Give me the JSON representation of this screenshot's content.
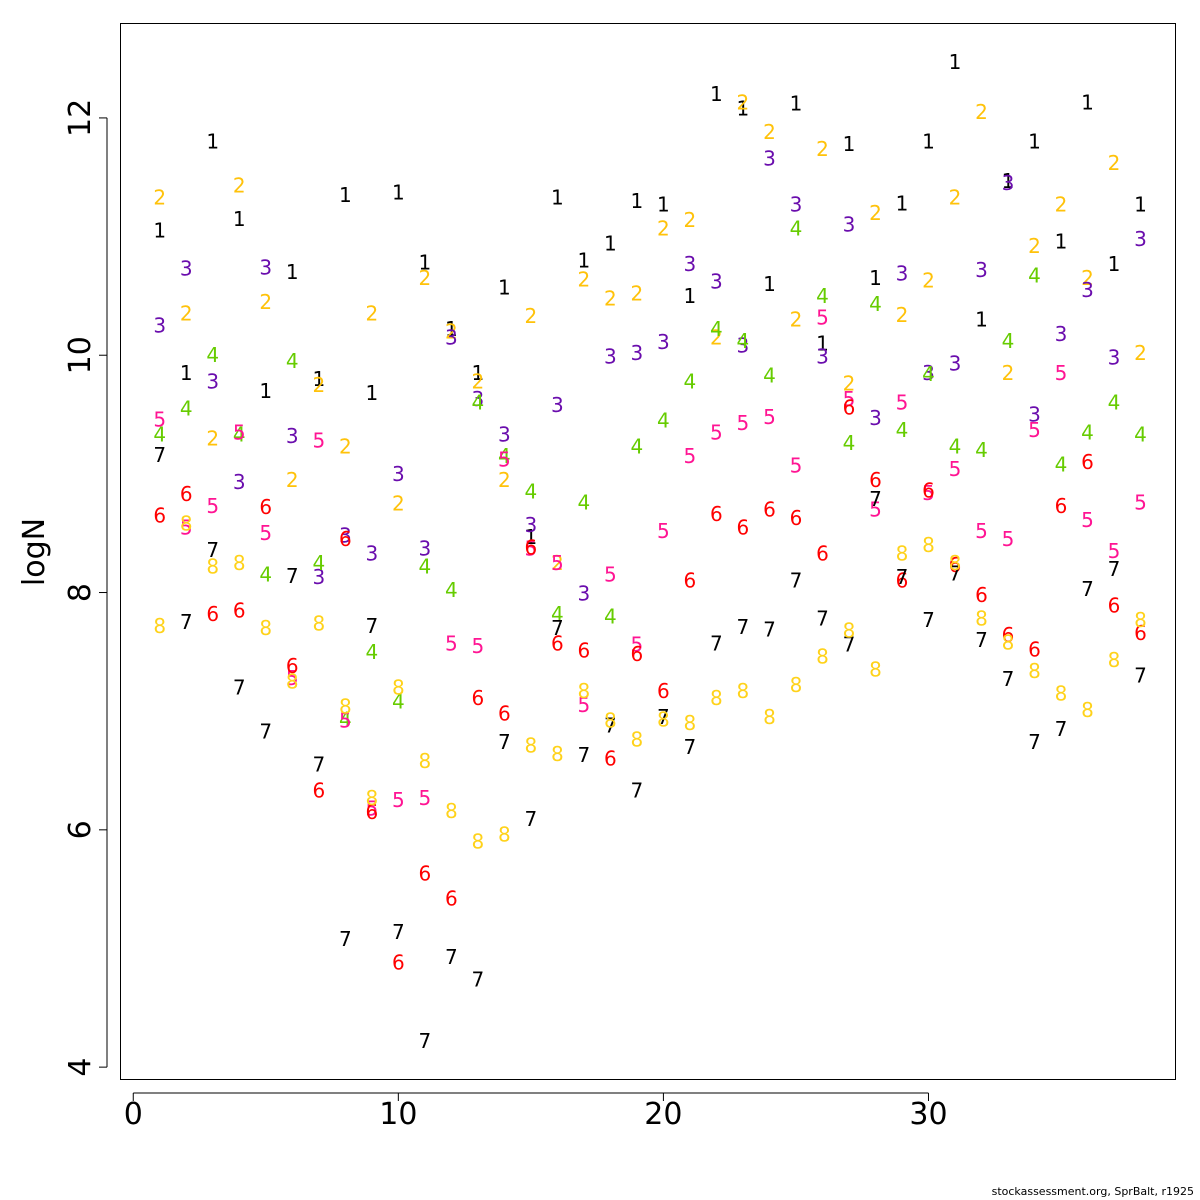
{
  "chart_data": {
    "type": "scatter",
    "xlabel": "",
    "ylabel": "logN",
    "xlim": [
      -0.5,
      39.3
    ],
    "ylim": [
      3.9,
      12.8
    ],
    "xticks": [
      0,
      10,
      20,
      30
    ],
    "yticks": [
      4,
      6,
      8,
      10,
      12
    ],
    "grid": false,
    "marker": "age label",
    "colors": {
      "1": "#000000",
      "2": "#FFC20A",
      "3": "#6A0DAD",
      "4": "#66CC00",
      "5": "#FF1493",
      "6": "#FF0000",
      "7": "#000000",
      "8": "#FFD21A"
    },
    "series": [
      {
        "label": "1",
        "points": [
          [
            1,
            11.05
          ],
          [
            2,
            9.85
          ],
          [
            3,
            11.8
          ],
          [
            4,
            11.15
          ],
          [
            5,
            9.7
          ],
          [
            6,
            10.7
          ],
          [
            7,
            9.8
          ],
          [
            8,
            11.35
          ],
          [
            9,
            9.68
          ],
          [
            10,
            11.37
          ],
          [
            11,
            10.78
          ],
          [
            12,
            10.22
          ],
          [
            13,
            9.85
          ],
          [
            14,
            10.57
          ],
          [
            15,
            8.47
          ],
          [
            16,
            11.33
          ],
          [
            17,
            10.8
          ],
          [
            18,
            10.94
          ],
          [
            19,
            11.3
          ],
          [
            20,
            11.27
          ],
          [
            21,
            10.5
          ],
          [
            22,
            12.2
          ],
          [
            23,
            12.08
          ],
          [
            24,
            10.6
          ],
          [
            25,
            12.12
          ],
          [
            26,
            10.1
          ],
          [
            27,
            11.78
          ],
          [
            28,
            10.65
          ],
          [
            29,
            11.28
          ],
          [
            30,
            11.8
          ],
          [
            31,
            12.47
          ],
          [
            32,
            10.3
          ],
          [
            33,
            11.47
          ],
          [
            34,
            11.8
          ],
          [
            35,
            10.96
          ],
          [
            36,
            12.13
          ],
          [
            37,
            10.77
          ],
          [
            38,
            11.27
          ]
        ]
      },
      {
        "label": "2",
        "points": [
          [
            1,
            11.33
          ],
          [
            2,
            10.35
          ],
          [
            3,
            9.3
          ],
          [
            4,
            11.43
          ],
          [
            5,
            10.45
          ],
          [
            6,
            8.95
          ],
          [
            7,
            9.75
          ],
          [
            8,
            9.23
          ],
          [
            9,
            10.35
          ],
          [
            10,
            8.75
          ],
          [
            11,
            10.65
          ],
          [
            12,
            10.2
          ],
          [
            13,
            9.78
          ],
          [
            14,
            8.95
          ],
          [
            15,
            10.33
          ],
          [
            16,
            8.25
          ],
          [
            17,
            10.64
          ],
          [
            18,
            10.48
          ],
          [
            19,
            10.52
          ],
          [
            20,
            11.07
          ],
          [
            21,
            11.14
          ],
          [
            22,
            10.15
          ],
          [
            23,
            12.13
          ],
          [
            24,
            11.88
          ],
          [
            25,
            10.3
          ],
          [
            26,
            11.74
          ],
          [
            27,
            9.76
          ],
          [
            28,
            11.2
          ],
          [
            29,
            10.34
          ],
          [
            30,
            10.63
          ],
          [
            31,
            11.33
          ],
          [
            32,
            12.05
          ],
          [
            33,
            9.85
          ],
          [
            34,
            10.92
          ],
          [
            35,
            11.27
          ],
          [
            36,
            10.65
          ],
          [
            37,
            11.62
          ],
          [
            38,
            10.02
          ]
        ]
      },
      {
        "label": "3",
        "points": [
          [
            1,
            10.25
          ],
          [
            2,
            10.73
          ],
          [
            3,
            9.78
          ],
          [
            4,
            8.93
          ],
          [
            5,
            10.74
          ],
          [
            6,
            9.32
          ],
          [
            7,
            8.13
          ],
          [
            8,
            8.48
          ],
          [
            9,
            8.33
          ],
          [
            10,
            9.0
          ],
          [
            11,
            8.37
          ],
          [
            12,
            10.15
          ],
          [
            13,
            9.63
          ],
          [
            14,
            9.33
          ],
          [
            15,
            8.57
          ],
          [
            16,
            9.58
          ],
          [
            17,
            7.99
          ],
          [
            18,
            9.99
          ],
          [
            19,
            10.02
          ],
          [
            20,
            10.11
          ],
          [
            21,
            10.77
          ],
          [
            22,
            10.62
          ],
          [
            23,
            10.08
          ],
          [
            24,
            11.66
          ],
          [
            25,
            11.27
          ],
          [
            26,
            9.99
          ],
          [
            27,
            11.1
          ],
          [
            28,
            9.47
          ],
          [
            29,
            10.69
          ],
          [
            30,
            9.85
          ],
          [
            31,
            9.93
          ],
          [
            32,
            10.72
          ],
          [
            33,
            11.45
          ],
          [
            34,
            9.5
          ],
          [
            35,
            10.18
          ],
          [
            36,
            10.55
          ],
          [
            37,
            9.98
          ],
          [
            38,
            10.98
          ]
        ]
      },
      {
        "label": "4",
        "points": [
          [
            1,
            9.33
          ],
          [
            2,
            9.55
          ],
          [
            3,
            10.0
          ],
          [
            4,
            9.33
          ],
          [
            5,
            8.15
          ],
          [
            6,
            9.95
          ],
          [
            7,
            8.25
          ],
          [
            8,
            6.93
          ],
          [
            9,
            7.5
          ],
          [
            10,
            7.08
          ],
          [
            11,
            8.22
          ],
          [
            12,
            8.02
          ],
          [
            13,
            9.6
          ],
          [
            14,
            9.15
          ],
          [
            15,
            8.85
          ],
          [
            16,
            7.82
          ],
          [
            17,
            8.76
          ],
          [
            18,
            7.8
          ],
          [
            19,
            9.23
          ],
          [
            20,
            9.45
          ],
          [
            21,
            9.78
          ],
          [
            22,
            10.22
          ],
          [
            23,
            10.12
          ],
          [
            24,
            9.83
          ],
          [
            25,
            11.07
          ],
          [
            26,
            10.5
          ],
          [
            27,
            9.26
          ],
          [
            28,
            10.43
          ],
          [
            29,
            9.37
          ],
          [
            30,
            9.84
          ],
          [
            31,
            9.23
          ],
          [
            32,
            9.2
          ],
          [
            33,
            10.12
          ],
          [
            34,
            10.67
          ],
          [
            35,
            9.08
          ],
          [
            36,
            9.35
          ],
          [
            37,
            9.6
          ],
          [
            38,
            9.33
          ]
        ]
      },
      {
        "label": "5",
        "points": [
          [
            1,
            9.46
          ],
          [
            2,
            8.55
          ],
          [
            3,
            8.73
          ],
          [
            4,
            9.35
          ],
          [
            5,
            8.5
          ],
          [
            6,
            7.28
          ],
          [
            7,
            9.28
          ],
          [
            8,
            6.92
          ],
          [
            9,
            6.18
          ],
          [
            10,
            6.25
          ],
          [
            11,
            6.27
          ],
          [
            12,
            7.57
          ],
          [
            13,
            7.55
          ],
          [
            14,
            9.12
          ],
          [
            15,
            8.37
          ],
          [
            16,
            8.25
          ],
          [
            17,
            7.05
          ],
          [
            18,
            8.15
          ],
          [
            19,
            7.56
          ],
          [
            20,
            8.52
          ],
          [
            21,
            9.15
          ],
          [
            22,
            9.35
          ],
          [
            23,
            9.43
          ],
          [
            24,
            9.48
          ],
          [
            25,
            9.07
          ],
          [
            26,
            10.32
          ],
          [
            27,
            9.63
          ],
          [
            28,
            8.7
          ],
          [
            29,
            9.6
          ],
          [
            30,
            8.84
          ],
          [
            31,
            9.04
          ],
          [
            32,
            8.52
          ],
          [
            33,
            8.45
          ],
          [
            34,
            9.37
          ],
          [
            35,
            9.85
          ],
          [
            36,
            8.61
          ],
          [
            37,
            8.35
          ],
          [
            38,
            8.76
          ]
        ]
      },
      {
        "label": "6",
        "points": [
          [
            1,
            8.65
          ],
          [
            2,
            8.83
          ],
          [
            3,
            7.82
          ],
          [
            4,
            7.85
          ],
          [
            5,
            8.72
          ],
          [
            6,
            7.38
          ],
          [
            7,
            6.33
          ],
          [
            8,
            8.45
          ],
          [
            9,
            6.15
          ],
          [
            10,
            4.88
          ],
          [
            11,
            5.63
          ],
          [
            12,
            5.42
          ],
          [
            13,
            7.11
          ],
          [
            14,
            6.98
          ],
          [
            15,
            8.38
          ],
          [
            16,
            7.57
          ],
          [
            17,
            7.51
          ],
          [
            18,
            6.6
          ],
          [
            19,
            7.48
          ],
          [
            20,
            7.17
          ],
          [
            21,
            8.1
          ],
          [
            22,
            8.66
          ],
          [
            23,
            8.55
          ],
          [
            24,
            8.7
          ],
          [
            25,
            8.63
          ],
          [
            26,
            8.33
          ],
          [
            27,
            9.56
          ],
          [
            28,
            8.95
          ],
          [
            29,
            8.1
          ],
          [
            30,
            8.86
          ],
          [
            31,
            8.23
          ],
          [
            32,
            7.98
          ],
          [
            33,
            7.64
          ],
          [
            34,
            7.52
          ],
          [
            35,
            8.73
          ],
          [
            36,
            9.1
          ],
          [
            37,
            7.89
          ],
          [
            38,
            7.66
          ]
        ]
      },
      {
        "label": "7",
        "points": [
          [
            1,
            9.16
          ],
          [
            2,
            7.75
          ],
          [
            3,
            8.36
          ],
          [
            4,
            7.2
          ],
          [
            5,
            6.83
          ],
          [
            6,
            8.14
          ],
          [
            7,
            6.55
          ],
          [
            8,
            5.08
          ],
          [
            9,
            7.72
          ],
          [
            10,
            5.14
          ],
          [
            11,
            4.22
          ],
          [
            12,
            4.93
          ],
          [
            13,
            4.74
          ],
          [
            14,
            6.74
          ],
          [
            15,
            6.09
          ],
          [
            16,
            7.7
          ],
          [
            17,
            6.63
          ],
          [
            18,
            6.88
          ],
          [
            19,
            6.33
          ],
          [
            20,
            6.95
          ],
          [
            21,
            6.7
          ],
          [
            22,
            7.57
          ],
          [
            23,
            7.71
          ],
          [
            24,
            7.69
          ],
          [
            25,
            8.1
          ],
          [
            26,
            7.78
          ],
          [
            27,
            7.56
          ],
          [
            28,
            8.79
          ],
          [
            29,
            8.13
          ],
          [
            30,
            7.77
          ],
          [
            31,
            8.16
          ],
          [
            32,
            7.6
          ],
          [
            33,
            7.27
          ],
          [
            34,
            6.74
          ],
          [
            35,
            6.85
          ],
          [
            36,
            8.03
          ],
          [
            37,
            8.2
          ],
          [
            38,
            7.3
          ]
        ]
      },
      {
        "label": "8",
        "points": [
          [
            1,
            7.72
          ],
          [
            2,
            8.58
          ],
          [
            3,
            8.22
          ],
          [
            4,
            8.25
          ],
          [
            5,
            7.7
          ],
          [
            6,
            7.25
          ],
          [
            7,
            7.74
          ],
          [
            8,
            7.04
          ],
          [
            9,
            6.27
          ],
          [
            10,
            7.2
          ],
          [
            11,
            6.58
          ],
          [
            12,
            6.16
          ],
          [
            13,
            5.9
          ],
          [
            14,
            5.96
          ],
          [
            15,
            6.71
          ],
          [
            16,
            6.64
          ],
          [
            17,
            7.17
          ],
          [
            18,
            6.92
          ],
          [
            19,
            6.76
          ],
          [
            20,
            6.93
          ],
          [
            21,
            6.9
          ],
          [
            22,
            7.11
          ],
          [
            23,
            7.17
          ],
          [
            24,
            6.95
          ],
          [
            25,
            7.22
          ],
          [
            26,
            7.46
          ],
          [
            27,
            7.68
          ],
          [
            28,
            7.35
          ],
          [
            29,
            8.33
          ],
          [
            30,
            8.4
          ],
          [
            31,
            8.25
          ],
          [
            32,
            7.78
          ],
          [
            33,
            7.58
          ],
          [
            34,
            7.34
          ],
          [
            35,
            7.15
          ],
          [
            36,
            7.01
          ],
          [
            37,
            7.43
          ],
          [
            38,
            7.77
          ]
        ]
      }
    ]
  },
  "footer_text": "stockassessment.org, SprBalt, r1925"
}
